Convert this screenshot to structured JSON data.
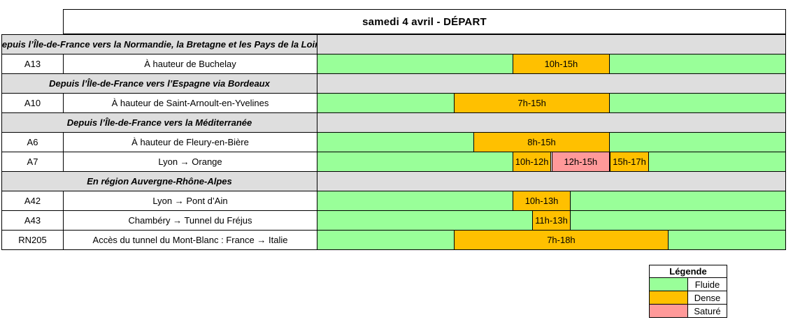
{
  "colors": {
    "fluide": "#99FF99",
    "dense": "#FFC000",
    "sature": "#FF9999",
    "section_bg": "#DEDEDE",
    "border": "#000000"
  },
  "chart_data": {
    "type": "table",
    "title": "samedi 4 avril  - DÉPART",
    "x_axis": {
      "unit": "hour",
      "range": [
        0,
        24
      ],
      "note": "timeline bars span 0h-24h proportionally"
    },
    "rows": [
      {
        "section": "Depuis l’Île-de-France vers la Normandie, la Bretagne et les Pays de la Loire"
      },
      {
        "road": "A13",
        "location": "À hauteur de Buchelay",
        "segments": [
          {
            "from": 0,
            "to": 10,
            "state": "fluide"
          },
          {
            "from": 10,
            "to": 15,
            "state": "dense",
            "label": "10h-15h"
          },
          {
            "from": 15,
            "to": 24,
            "state": "fluide"
          }
        ]
      },
      {
        "section": "Depuis l’Île-de-France vers l’Espagne via Bordeaux"
      },
      {
        "road": "A10",
        "location": "À hauteur de Saint-Arnoult-en-Yvelines",
        "segments": [
          {
            "from": 0,
            "to": 7,
            "state": "fluide"
          },
          {
            "from": 7,
            "to": 15,
            "state": "dense",
            "label": "7h-15h"
          },
          {
            "from": 15,
            "to": 24,
            "state": "fluide"
          }
        ]
      },
      {
        "section": "Depuis l’Île-de-France vers la Méditerranée"
      },
      {
        "road": "A6",
        "location": "À hauteur de Fleury-en-Bière",
        "segments": [
          {
            "from": 0,
            "to": 8,
            "state": "fluide"
          },
          {
            "from": 8,
            "to": 15,
            "state": "dense",
            "label": "8h-15h"
          },
          {
            "from": 15,
            "to": 24,
            "state": "fluide"
          }
        ]
      },
      {
        "road": "A7",
        "location": "Lyon → Orange",
        "segments": [
          {
            "from": 0,
            "to": 10,
            "state": "fluide"
          },
          {
            "from": 10,
            "to": 12,
            "state": "dense",
            "label": "10h-12h"
          },
          {
            "from": 12,
            "to": 15,
            "state": "sature",
            "label": "12h-15h"
          },
          {
            "from": 15,
            "to": 17,
            "state": "dense",
            "label": "15h-17h"
          },
          {
            "from": 17,
            "to": 24,
            "state": "fluide"
          }
        ]
      },
      {
        "section": "En région Auvergne-Rhône-Alpes"
      },
      {
        "road": "A42",
        "location": "Lyon → Pont d’Ain",
        "segments": [
          {
            "from": 0,
            "to": 10,
            "state": "fluide"
          },
          {
            "from": 10,
            "to": 13,
            "state": "dense",
            "label": "10h-13h"
          },
          {
            "from": 13,
            "to": 24,
            "state": "fluide"
          }
        ]
      },
      {
        "road": "A43",
        "location": "Chambéry → Tunnel du Fréjus",
        "segments": [
          {
            "from": 0,
            "to": 11,
            "state": "fluide"
          },
          {
            "from": 11,
            "to": 13,
            "state": "dense",
            "label": "11h-13h"
          },
          {
            "from": 13,
            "to": 24,
            "state": "fluide"
          }
        ]
      },
      {
        "road": "RN205",
        "location": "Accès du tunnel du Mont-Blanc : France → Italie",
        "segments": [
          {
            "from": 0,
            "to": 7,
            "state": "fluide"
          },
          {
            "from": 7,
            "to": 18,
            "state": "dense",
            "label": "7h-18h"
          },
          {
            "from": 18,
            "to": 24,
            "state": "fluide"
          }
        ]
      }
    ],
    "legend": {
      "title": "Légende",
      "items": [
        {
          "label": "Fluide",
          "state": "fluide"
        },
        {
          "label": "Dense",
          "state": "dense"
        },
        {
          "label": "Saturé",
          "state": "sature"
        }
      ]
    }
  }
}
